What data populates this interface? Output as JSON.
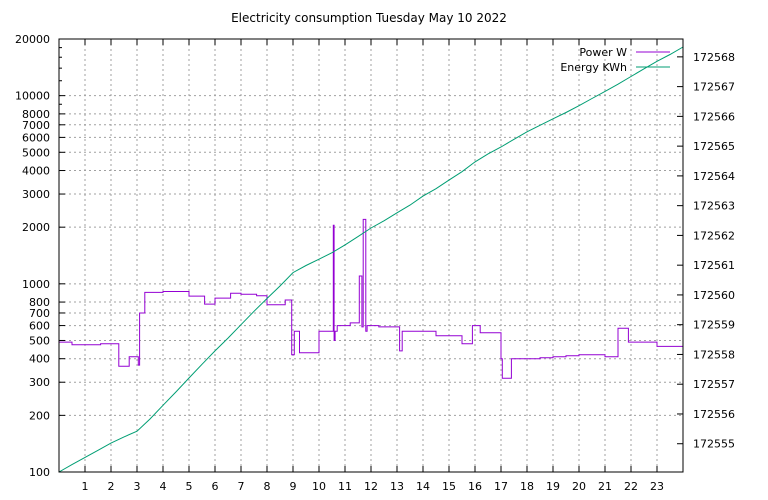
{
  "chart_data": {
    "type": "line",
    "title": "Electricity consumption Tuesday May 10 2022",
    "xlabel": "",
    "ylabel": "",
    "y2label": "",
    "grid": true,
    "legend_position": "top-right",
    "x_range": [
      0,
      24
    ],
    "x_ticks": [
      1,
      2,
      3,
      4,
      5,
      6,
      7,
      8,
      9,
      10,
      11,
      12,
      13,
      14,
      15,
      16,
      17,
      18,
      19,
      20,
      21,
      22,
      23
    ],
    "y_scale": "log",
    "y_range": [
      100,
      20000
    ],
    "y_ticks": [
      100,
      200,
      300,
      400,
      500,
      600,
      700,
      800,
      1000,
      2000,
      3000,
      4000,
      5000,
      6000,
      7000,
      8000,
      10000,
      20000
    ],
    "y2_range": [
      172554.05,
      172568.6
    ],
    "y2_ticks": [
      172555,
      172556,
      172557,
      172558,
      172559,
      172560,
      172561,
      172562,
      172563,
      172564,
      172565,
      172566,
      172567,
      172568
    ],
    "series": [
      {
        "name": "Power W",
        "axis": "y",
        "color": "#9400d3",
        "step": true,
        "x": [
          0,
          0.5,
          1.6,
          2.0,
          2.3,
          2.7,
          3.05,
          3.1,
          3.3,
          4.0,
          4.5,
          5.0,
          5.6,
          6.0,
          6.6,
          7.0,
          7.6,
          8.0,
          8.7,
          8.95,
          9.05,
          9.25,
          9.6,
          10.0,
          10.55,
          10.58,
          10.62,
          10.7,
          10.8,
          11.2,
          11.55,
          11.65,
          11.7,
          11.8,
          11.85,
          12.0,
          12.3,
          13.0,
          13.1,
          13.2,
          14.0,
          14.5,
          15.0,
          15.5,
          15.9,
          16.2,
          16.5,
          17.0,
          17.05,
          17.4,
          18.0,
          18.5,
          19.0,
          19.5,
          20.0,
          21.0,
          21.5,
          21.9,
          22.5,
          23.0,
          24.0
        ],
        "values": [
          490,
          475,
          480,
          480,
          365,
          410,
          370,
          700,
          900,
          910,
          910,
          860,
          780,
          840,
          890,
          880,
          865,
          775,
          820,
          420,
          560,
          430,
          430,
          560,
          2050,
          500,
          560,
          600,
          600,
          620,
          1100,
          590,
          2200,
          560,
          600,
          600,
          590,
          590,
          440,
          560,
          560,
          530,
          530,
          480,
          600,
          550,
          550,
          400,
          315,
          400,
          400,
          405,
          410,
          415,
          420,
          410,
          580,
          490,
          490,
          465,
          470
        ]
      },
      {
        "name": "Energy KWh",
        "axis": "y2",
        "color": "#009e73",
        "step": false,
        "x": [
          0,
          0.5,
          1,
          1.5,
          2,
          2.5,
          3,
          3.5,
          4,
          4.5,
          5,
          5.5,
          6,
          6.5,
          7,
          7.5,
          8,
          8.5,
          9,
          9.5,
          10,
          10.5,
          11,
          11.5,
          12,
          12.5,
          13,
          13.5,
          14,
          14.5,
          15,
          15.5,
          16,
          16.5,
          17,
          17.5,
          18,
          18.5,
          19,
          19.5,
          20,
          20.5,
          21,
          21.5,
          22,
          22.5,
          23,
          23.5,
          24
        ],
        "values": [
          172554.05,
          172554.3,
          172554.54,
          172554.78,
          172555.02,
          172555.23,
          172555.42,
          172555.83,
          172556.29,
          172556.74,
          172557.21,
          172557.67,
          172558.12,
          172558.55,
          172559.0,
          172559.45,
          172559.88,
          172560.3,
          172560.75,
          172560.99,
          172561.2,
          172561.42,
          172561.68,
          172561.96,
          172562.25,
          172562.49,
          172562.76,
          172563.02,
          172563.32,
          172563.57,
          172563.86,
          172564.14,
          172564.47,
          172564.74,
          172564.97,
          172565.23,
          172565.48,
          172565.7,
          172565.92,
          172566.13,
          172566.36,
          172566.6,
          172566.84,
          172567.08,
          172567.34,
          172567.6,
          172567.85,
          172568.08,
          172568.33
        ]
      }
    ]
  }
}
